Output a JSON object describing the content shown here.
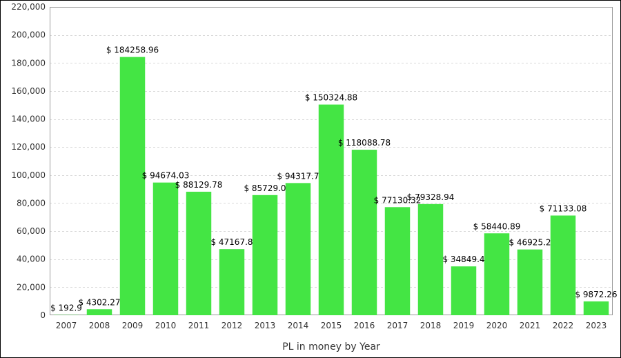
{
  "chart_data": {
    "type": "bar",
    "title": "",
    "xlabel": "PL in money by Year",
    "ylabel": "",
    "ylim": [
      0,
      220000
    ],
    "yticks": [
      0,
      20000,
      40000,
      60000,
      80000,
      100000,
      120000,
      140000,
      160000,
      180000,
      200000,
      220000
    ],
    "ytick_labels": [
      "0",
      "20,000",
      "40,000",
      "60,000",
      "80,000",
      "100,000",
      "120,000",
      "140,000",
      "160,000",
      "180,000",
      "200,000",
      "220,000"
    ],
    "grid": true,
    "bar_color": "#44e544",
    "categories": [
      "2007",
      "2008",
      "2009",
      "2010",
      "2011",
      "2012",
      "2013",
      "2014",
      "2015",
      "2016",
      "2017",
      "2018",
      "2019",
      "2020",
      "2021",
      "2022",
      "2023"
    ],
    "values": [
      192.9,
      4302.27,
      184258.96,
      94674.03,
      88129.78,
      47167.8,
      85729.0,
      94317.7,
      150324.88,
      118088.78,
      77130.32,
      79328.94,
      34849.4,
      58440.89,
      46925.2,
      71133.08,
      9872.26
    ],
    "data_labels": [
      "$ 192.9",
      "$ 4302.27",
      "$ 184258.96",
      "$ 94674.03",
      "$ 88129.78",
      "$ 47167.8",
      "$ 85729.0",
      "$ 94317.7",
      "$ 150324.88",
      "$ 118088.78",
      "$ 77130.32",
      "$ 79328.94",
      "$ 34849.4",
      "$ 58440.89",
      "$ 46925.2",
      "$ 71133.08",
      "$ 9872.26"
    ]
  }
}
